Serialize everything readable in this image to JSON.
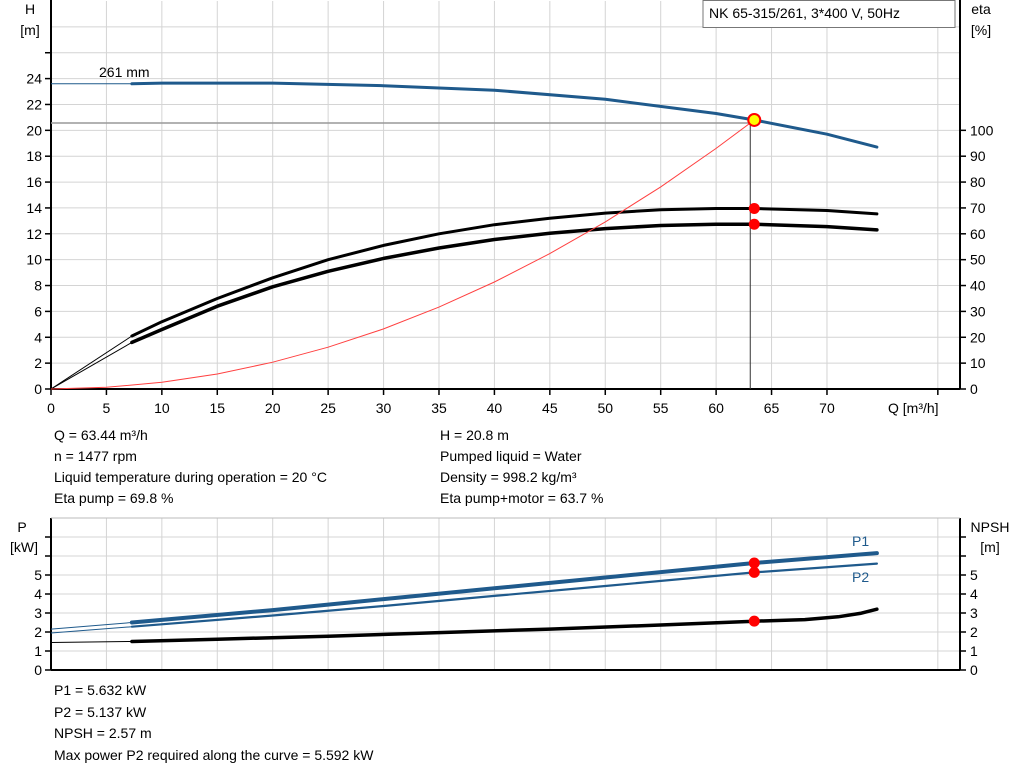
{
  "chart_data": [
    {
      "type": "line",
      "title": "NK 65-315/261, 3*400 V, 50Hz",
      "xlabel": "Q [m³/h]",
      "ylabel_left": [
        "H",
        "[m]"
      ],
      "ylabel_right": [
        "eta",
        "[%]"
      ],
      "xlim": [
        0,
        82
      ],
      "ylim_left": [
        0,
        30
      ],
      "ylim_right": [
        0,
        150
      ],
      "grid": true,
      "x_ticks": [
        0,
        5,
        10,
        15,
        20,
        25,
        30,
        35,
        40,
        45,
        50,
        55,
        60,
        65,
        70,
        80
      ],
      "x_tick_labels": [
        "0",
        "5",
        "10",
        "15",
        "20",
        "25",
        "30",
        "35",
        "40",
        "45",
        "50",
        "55",
        "60",
        "65",
        "70"
      ],
      "y_left_ticks": [
        0,
        2,
        4,
        6,
        8,
        10,
        12,
        14,
        16,
        18,
        20,
        22,
        24,
        26
      ],
      "y_left_tick_labels": [
        "0",
        "2",
        "4",
        "6",
        "8",
        "10",
        "12",
        "14",
        "16",
        "18",
        "20",
        "22",
        "24"
      ],
      "y_right_ticks": [
        0,
        10,
        20,
        30,
        40,
        50,
        60,
        70,
        80,
        90,
        100
      ],
      "y_right_tick_labels": [
        "0",
        "10",
        "20",
        "30",
        "40",
        "50",
        "60",
        "70",
        "80",
        "90",
        "100"
      ],
      "series": [
        {
          "name": "261 mm",
          "axis": "left",
          "color": "#1f5a8c",
          "thick_from_q": 7.3,
          "points": [
            [
              0,
              23.6
            ],
            [
              7.3,
              23.6
            ],
            [
              10,
              23.65
            ],
            [
              20,
              23.65
            ],
            [
              30,
              23.45
            ],
            [
              40,
              23.1
            ],
            [
              50,
              22.4
            ],
            [
              60,
              21.3
            ],
            [
              63.44,
              20.8
            ],
            [
              70,
              19.7
            ],
            [
              74.5,
              18.7
            ]
          ]
        },
        {
          "axis": "right",
          "color": "#000000",
          "thick_from_q": 7.3,
          "points": [
            [
              0,
              0
            ],
            [
              7.3,
              20.5
            ],
            [
              10,
              26
            ],
            [
              15,
              35
            ],
            [
              20,
              43
            ],
            [
              25,
              50
            ],
            [
              30,
              55.5
            ],
            [
              35,
              60
            ],
            [
              40,
              63.5
            ],
            [
              45,
              66
            ],
            [
              50,
              68
            ],
            [
              55,
              69.3
            ],
            [
              60,
              69.8
            ],
            [
              63.44,
              69.8
            ],
            [
              70,
              69
            ],
            [
              74.5,
              67.7
            ]
          ]
        },
        {
          "axis": "right",
          "color": "#000000",
          "thick_from_q": 7.3,
          "width": 3.5,
          "points": [
            [
              0,
              0
            ],
            [
              7.3,
              18
            ],
            [
              10,
              23
            ],
            [
              15,
              32
            ],
            [
              20,
              39.5
            ],
            [
              25,
              45.5
            ],
            [
              30,
              50.5
            ],
            [
              35,
              54.5
            ],
            [
              40,
              57.8
            ],
            [
              45,
              60.2
            ],
            [
              50,
              62
            ],
            [
              55,
              63.2
            ],
            [
              60,
              63.7
            ],
            [
              63.44,
              63.7
            ],
            [
              70,
              62.8
            ],
            [
              74.5,
              61.5
            ]
          ]
        },
        {
          "axis": "left",
          "color": "#ff4040",
          "thin": true,
          "points": [
            [
              0,
              0
            ],
            [
              5,
              0.13
            ],
            [
              10,
              0.52
            ],
            [
              15,
              1.16
            ],
            [
              20,
              2.07
            ],
            [
              25,
              3.23
            ],
            [
              30,
              4.65
            ],
            [
              35,
              6.33
            ],
            [
              40,
              8.27
            ],
            [
              45,
              10.47
            ],
            [
              50,
              12.92
            ],
            [
              55,
              15.63
            ],
            [
              60,
              18.6
            ],
            [
              63.44,
              20.8
            ]
          ]
        }
      ],
      "operating_point": {
        "q": 63.44,
        "h": 20.8,
        "eta_pump": 69.8,
        "eta_pump_motor": 63.7,
        "marker_color": "#ffff00",
        "dot_color": "#ff0000"
      },
      "annotation": "261 mm"
    },
    {
      "type": "line",
      "xlim": [
        0,
        82
      ],
      "ylim_left": [
        0,
        8
      ],
      "ylim_right": [
        0,
        8
      ],
      "ylabel_left": [
        "P",
        "[kW]"
      ],
      "ylabel_right": [
        "NPSH",
        "[m]"
      ],
      "grid": true,
      "y_ticks": [
        0,
        1,
        2,
        3,
        4,
        5,
        6,
        7
      ],
      "y_tick_labels": [
        "0",
        "1",
        "2",
        "3",
        "4",
        "5"
      ],
      "series": [
        {
          "name": "P1",
          "axis": "left",
          "color": "#1f5a8c",
          "thick_from_q": 7.3,
          "width": 4,
          "points": [
            [
              0,
              2.15
            ],
            [
              7.3,
              2.5
            ],
            [
              20,
              3.15
            ],
            [
              30,
              3.73
            ],
            [
              40,
              4.3
            ],
            [
              50,
              4.87
            ],
            [
              63.44,
              5.632
            ],
            [
              74.5,
              6.15
            ]
          ]
        },
        {
          "name": "P2",
          "axis": "left",
          "color": "#1f5a8c",
          "thick_from_q": 7.3,
          "width": 2.2,
          "points": [
            [
              0,
              1.95
            ],
            [
              7.3,
              2.28
            ],
            [
              20,
              2.87
            ],
            [
              30,
              3.37
            ],
            [
              40,
              3.9
            ],
            [
              50,
              4.42
            ],
            [
              63.44,
              5.137
            ],
            [
              74.5,
              5.6
            ]
          ]
        },
        {
          "axis": "right",
          "color": "#000000",
          "thick_from_q": 7.3,
          "width": 3.5,
          "points": [
            [
              0,
              1.45
            ],
            [
              7.3,
              1.5
            ],
            [
              15,
              1.62
            ],
            [
              25,
              1.78
            ],
            [
              35,
              1.97
            ],
            [
              45,
              2.15
            ],
            [
              55,
              2.37
            ],
            [
              63.44,
              2.57
            ],
            [
              68,
              2.65
            ],
            [
              71,
              2.8
            ],
            [
              73,
              2.98
            ],
            [
              74.5,
              3.2
            ]
          ]
        }
      ],
      "operating_point": {
        "q": 63.44,
        "p1": 5.632,
        "p2": 5.137,
        "npsh": 2.57,
        "dot_color": "#ff0000"
      }
    }
  ],
  "info_top": {
    "q": "Q = 63.44 m³/h",
    "n": "n = 1477 rpm",
    "temp": "Liquid temperature during operation = 20 °C",
    "eta_pump": "Eta pump = 69.8 %",
    "h": "H = 20.8 m",
    "liquid": "Pumped liquid = Water",
    "density": "Density = 998.2 kg/m³",
    "eta_pm": "Eta pump+motor = 63.7 %"
  },
  "info_bottom": {
    "p1": "P1 = 5.632 kW",
    "p2": "P2 = 5.137 kW",
    "npsh": "NPSH = 2.57 m",
    "max_p2": "Max power P2 required along the curve = 5.592 kW"
  }
}
